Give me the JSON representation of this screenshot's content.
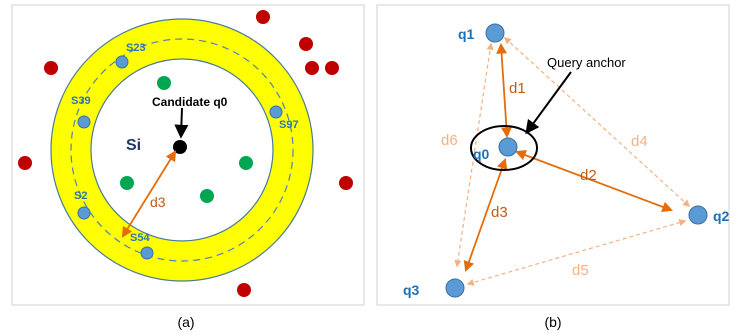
{
  "panel_a": {
    "caption": "(a)",
    "center_label": "Si",
    "candidate_label": "Candidate q0",
    "distance_label": "d3",
    "ring_nodes": [
      "S23",
      "S39",
      "S97",
      "S2",
      "S54"
    ]
  },
  "panel_b": {
    "caption": "(b)",
    "anchor_label": "Query anchor",
    "nodes": [
      "q1",
      "q0",
      "q2",
      "q3"
    ],
    "solid_distances": [
      "d1",
      "d2",
      "d3"
    ],
    "dashed_distances": [
      "d6",
      "d4",
      "d5"
    ]
  },
  "colors": {
    "ring_fill": "#ffff00",
    "red_point": "#c00000",
    "green_point": "#00a651",
    "blue_node": "#5b9bd5",
    "solid_arrow": "#e46c0a",
    "dashed_arrow": "#f4b183",
    "node_label": "#1f6fb5",
    "ring_label": "#2e75b6",
    "dist_label": "#c55a11"
  }
}
